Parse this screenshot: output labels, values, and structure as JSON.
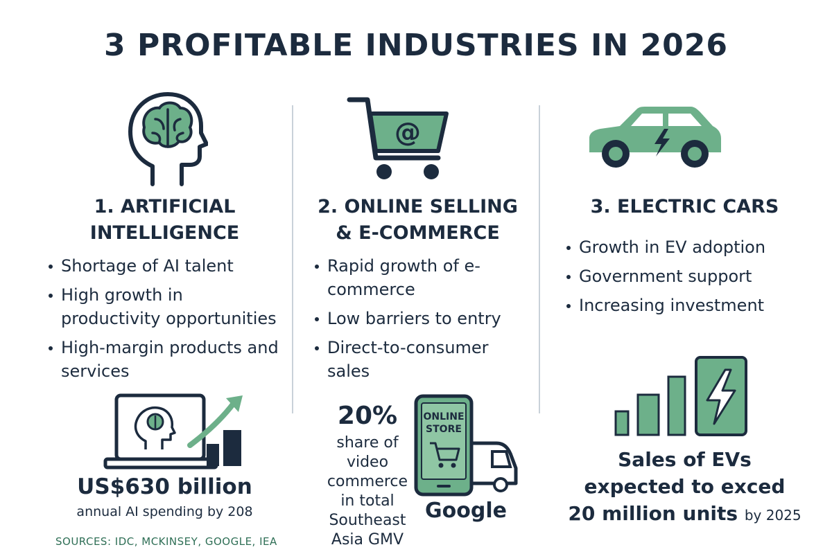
{
  "title": "3 PROFITABLE INDUSTRIES IN 2026",
  "colors": {
    "navy": "#1c2b3e",
    "green": "#6db08a",
    "green_dark": "#2f6f56",
    "divider": "#c9d1d9"
  },
  "columns": [
    {
      "icon": "brain-head-icon",
      "heading_line1": "1. ARTIFICIAL",
      "heading_line2": "INTELLIGENCE",
      "bullets": [
        "Shortage of AI talent",
        "High growth in productivity opportunities",
        "High-margin products and services"
      ],
      "stat_icon": "laptop-growth-chart-icon",
      "stat_value": "US$630 billion",
      "stat_caption": "annual AI spending by 208"
    },
    {
      "icon": "shopping-cart-at-icon",
      "heading_line1": "2. ONLINE SELLING",
      "heading_line2": "& E-COMMERCE",
      "bullets": [
        "Rapid growth of e-commerce",
        "Low barriers to entry",
        "Direct-to-consumer sales"
      ],
      "stat_icon": "phone-store-truck-icon",
      "stat_value": "20%",
      "stat_caption_lines": [
        "share of",
        "video",
        "commerce",
        "in total",
        "Southeast",
        "Asia GMV"
      ],
      "phone_label_line1": "ONLINE",
      "phone_label_line2": "STORE",
      "brand": "Google"
    },
    {
      "icon": "electric-car-icon",
      "heading_line1": "3. ELECTRIC CARS",
      "bullets": [
        "Growth in EV adoption",
        "Government support",
        "Increasing investment"
      ],
      "stat_icon": "ev-battery-bars-icon",
      "stat_line1": "Sales of EVs",
      "stat_line2": "expected to exced",
      "stat_line3_bold": "20 million units",
      "stat_line3_small": "by 2025"
    }
  ],
  "sources": "SOURCES: IDC, MCKINSEY, GOOGLE, IEA"
}
